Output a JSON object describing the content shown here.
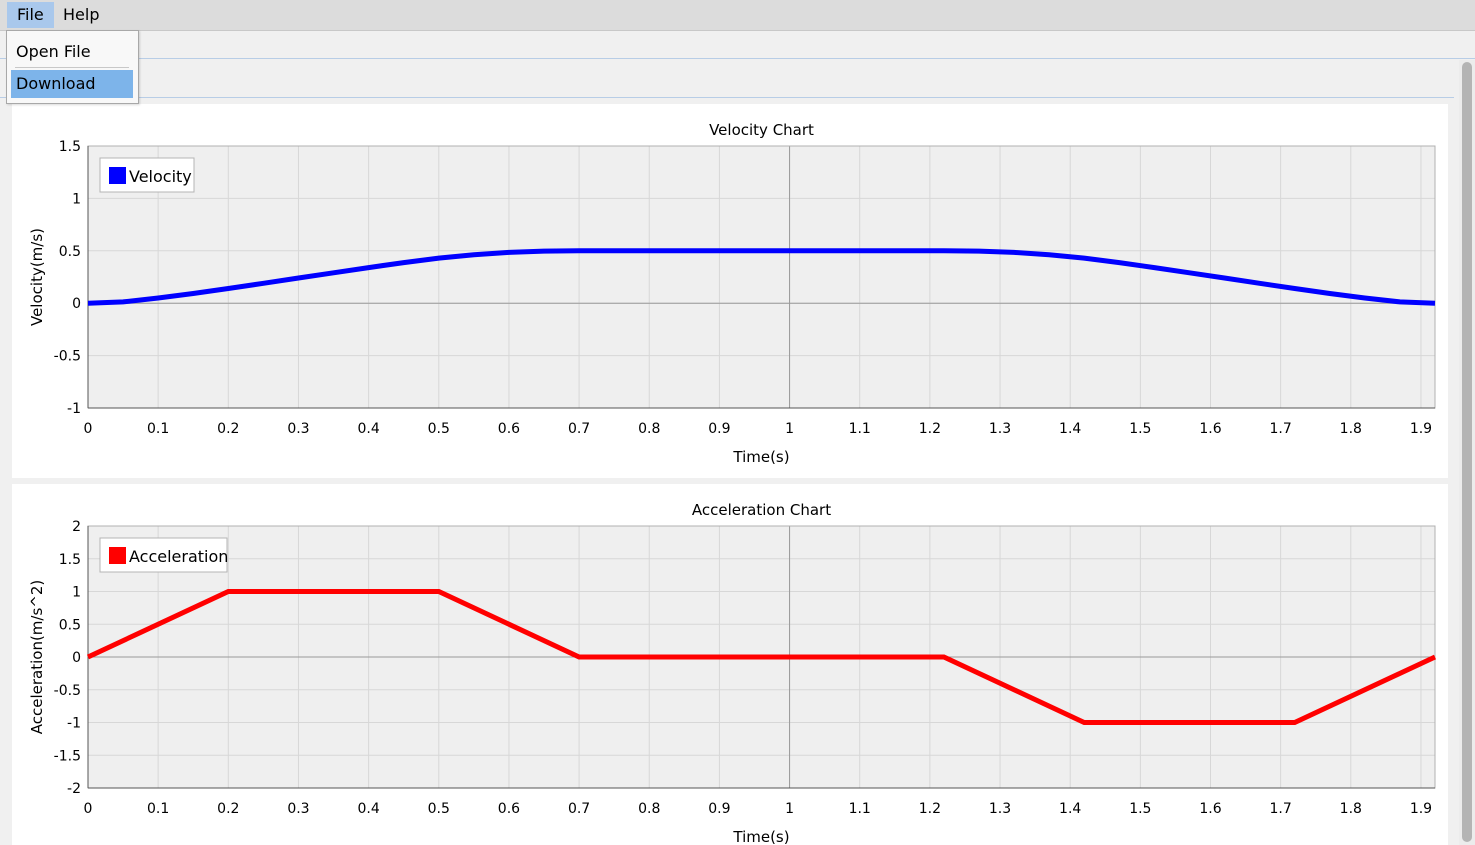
{
  "menu": {
    "file": "File",
    "help": "Help"
  },
  "dropdown": {
    "open_file": "Open File",
    "download": "Download"
  },
  "chart_data": [
    {
      "type": "line",
      "title": "Velocity Chart",
      "xlabel": "Time(s)",
      "ylabel": "Velocity(m/s)",
      "xlim": [
        0,
        1.92
      ],
      "ylim": [
        -1,
        1.5
      ],
      "xticks": [
        0,
        0.1,
        0.2,
        0.3,
        0.4,
        0.5,
        0.6,
        0.7,
        0.8,
        0.9,
        1,
        1.1,
        1.2,
        1.3,
        1.4,
        1.5,
        1.6,
        1.7,
        1.8,
        1.9
      ],
      "yticks": [
        -1,
        -0.5,
        0,
        0.5,
        1,
        1.5
      ],
      "grid": true,
      "legend_position": "top-left",
      "series": [
        {
          "name": "Velocity",
          "color": "#0000ff",
          "x": [
            0,
            0.05,
            0.1,
            0.15,
            0.2,
            0.25,
            0.3,
            0.35,
            0.4,
            0.45,
            0.5,
            0.55,
            0.6,
            0.65,
            0.7,
            0.8,
            0.9,
            1.0,
            1.1,
            1.2,
            1.22,
            1.27,
            1.32,
            1.37,
            1.42,
            1.47,
            1.52,
            1.57,
            1.62,
            1.67,
            1.72,
            1.77,
            1.82,
            1.87,
            1.92
          ],
          "y": [
            0,
            0.0125,
            0.05,
            0.0925,
            0.14,
            0.19,
            0.24,
            0.29,
            0.34,
            0.3875,
            0.43,
            0.4625,
            0.485,
            0.4975,
            0.5,
            0.5,
            0.5,
            0.5,
            0.5,
            0.5,
            0.5,
            0.4975,
            0.485,
            0.4625,
            0.43,
            0.3875,
            0.34,
            0.29,
            0.24,
            0.19,
            0.14,
            0.0925,
            0.05,
            0.0125,
            0
          ]
        }
      ]
    },
    {
      "type": "line",
      "title": "Acceleration Chart",
      "xlabel": "Time(s)",
      "ylabel": "Acceleration(m/s^2)",
      "xlim": [
        0,
        1.92
      ],
      "ylim": [
        -2,
        2
      ],
      "xticks": [
        0,
        0.1,
        0.2,
        0.3,
        0.4,
        0.5,
        0.6,
        0.7,
        0.8,
        0.9,
        1,
        1.1,
        1.2,
        1.3,
        1.4,
        1.5,
        1.6,
        1.7,
        1.8,
        1.9
      ],
      "yticks": [
        -2,
        -1.5,
        -1,
        -0.5,
        0,
        0.5,
        1,
        1.5,
        2
      ],
      "grid": true,
      "legend_position": "top-left",
      "series": [
        {
          "name": "Acceleration",
          "color": "#ff0000",
          "x": [
            0,
            0.2,
            0.5,
            0.7,
            1.22,
            1.42,
            1.72,
            1.92
          ],
          "y": [
            0,
            1,
            1,
            0,
            0,
            -1,
            -1,
            0
          ]
        }
      ]
    }
  ]
}
